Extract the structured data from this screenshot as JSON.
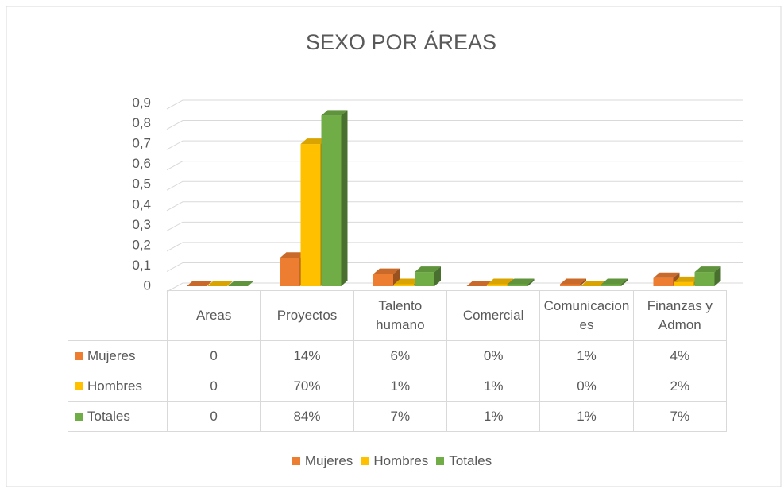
{
  "chart_data": {
    "type": "bar3d",
    "title": "SEXO POR ÁREAS",
    "categories": [
      "Areas",
      "Proyectos",
      "Talento humano",
      "Comercial",
      "Comunicaciones",
      "Finanzas y Admon"
    ],
    "series": [
      {
        "name": "Mujeres",
        "color": "#ed7d31",
        "values": [
          0,
          0.14,
          0.06,
          0,
          0.01,
          0.04
        ],
        "value_labels": [
          "0",
          "14%",
          "6%",
          "0%",
          "1%",
          "4%"
        ]
      },
      {
        "name": "Hombres",
        "color": "#ffc000",
        "values": [
          0,
          0.7,
          0.01,
          0.01,
          0,
          0.02
        ],
        "value_labels": [
          "0",
          "70%",
          "1%",
          "1%",
          "0%",
          "2%"
        ]
      },
      {
        "name": "Totales",
        "color": "#70ad47",
        "values": [
          0,
          0.84,
          0.07,
          0.01,
          0.01,
          0.07
        ],
        "value_labels": [
          "0",
          "84%",
          "7%",
          "1%",
          "1%",
          "7%"
        ]
      }
    ],
    "ylim": [
      0,
      0.9
    ],
    "yticks": [
      0,
      {
        "value": 0.1,
        "label": "0,1"
      },
      {
        "value": 0.2,
        "label": "0,2"
      },
      {
        "value": 0.3,
        "label": "0,3"
      },
      {
        "value": 0.4,
        "label": "0,4"
      },
      {
        "value": 0.5,
        "label": "0,5"
      },
      {
        "value": 0.6,
        "label": "0,6"
      },
      {
        "value": 0.7,
        "label": "0,7"
      },
      {
        "value": 0.8,
        "label": "0,8"
      },
      {
        "value": 0.9,
        "label": "0,9"
      }
    ],
    "grid": true,
    "legend": "bottom"
  }
}
